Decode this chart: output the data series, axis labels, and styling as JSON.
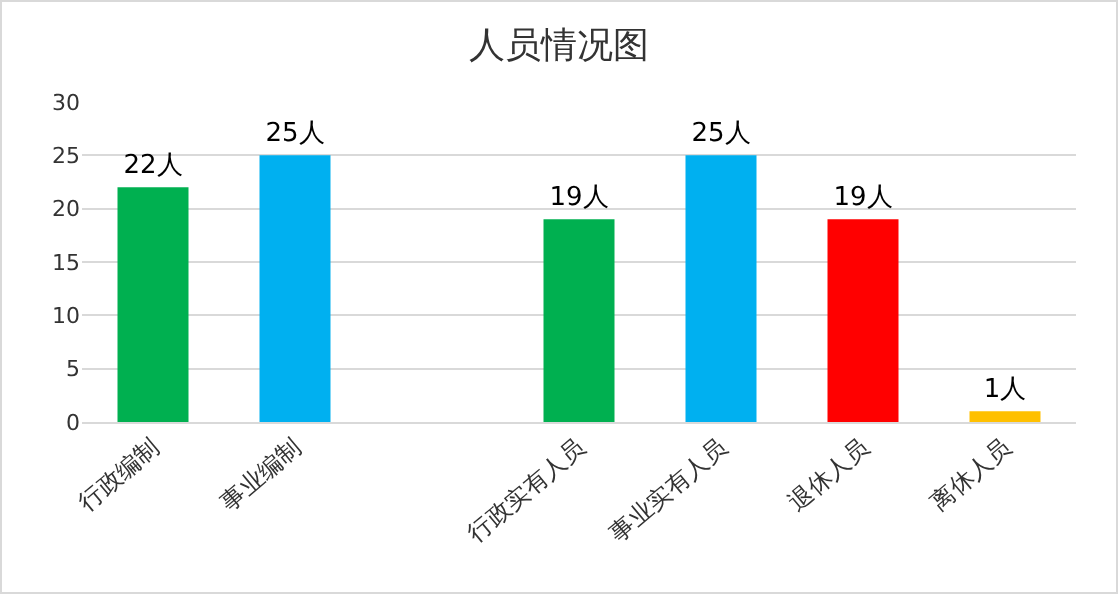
{
  "chart_data": {
    "type": "bar",
    "title": "人员情况图",
    "categories": [
      "行政编制",
      "事业编制",
      null,
      "行政实有人员",
      "事业实有人员",
      "退休人员",
      "离休人员"
    ],
    "values": [
      22,
      25,
      null,
      19,
      25,
      19,
      1
    ],
    "colors": [
      "#00b050",
      "#00b0f0",
      "#ffffff",
      "#00b050",
      "#00b0f0",
      "#ff0000",
      "#ffc000"
    ],
    "value_labels": [
      "22人",
      "25人",
      null,
      "19人",
      "25人",
      "19人",
      "1人"
    ],
    "ylim": [
      0,
      30
    ],
    "yticks": [
      0,
      5,
      10,
      15,
      20,
      25,
      30
    ],
    "grid": "y"
  }
}
